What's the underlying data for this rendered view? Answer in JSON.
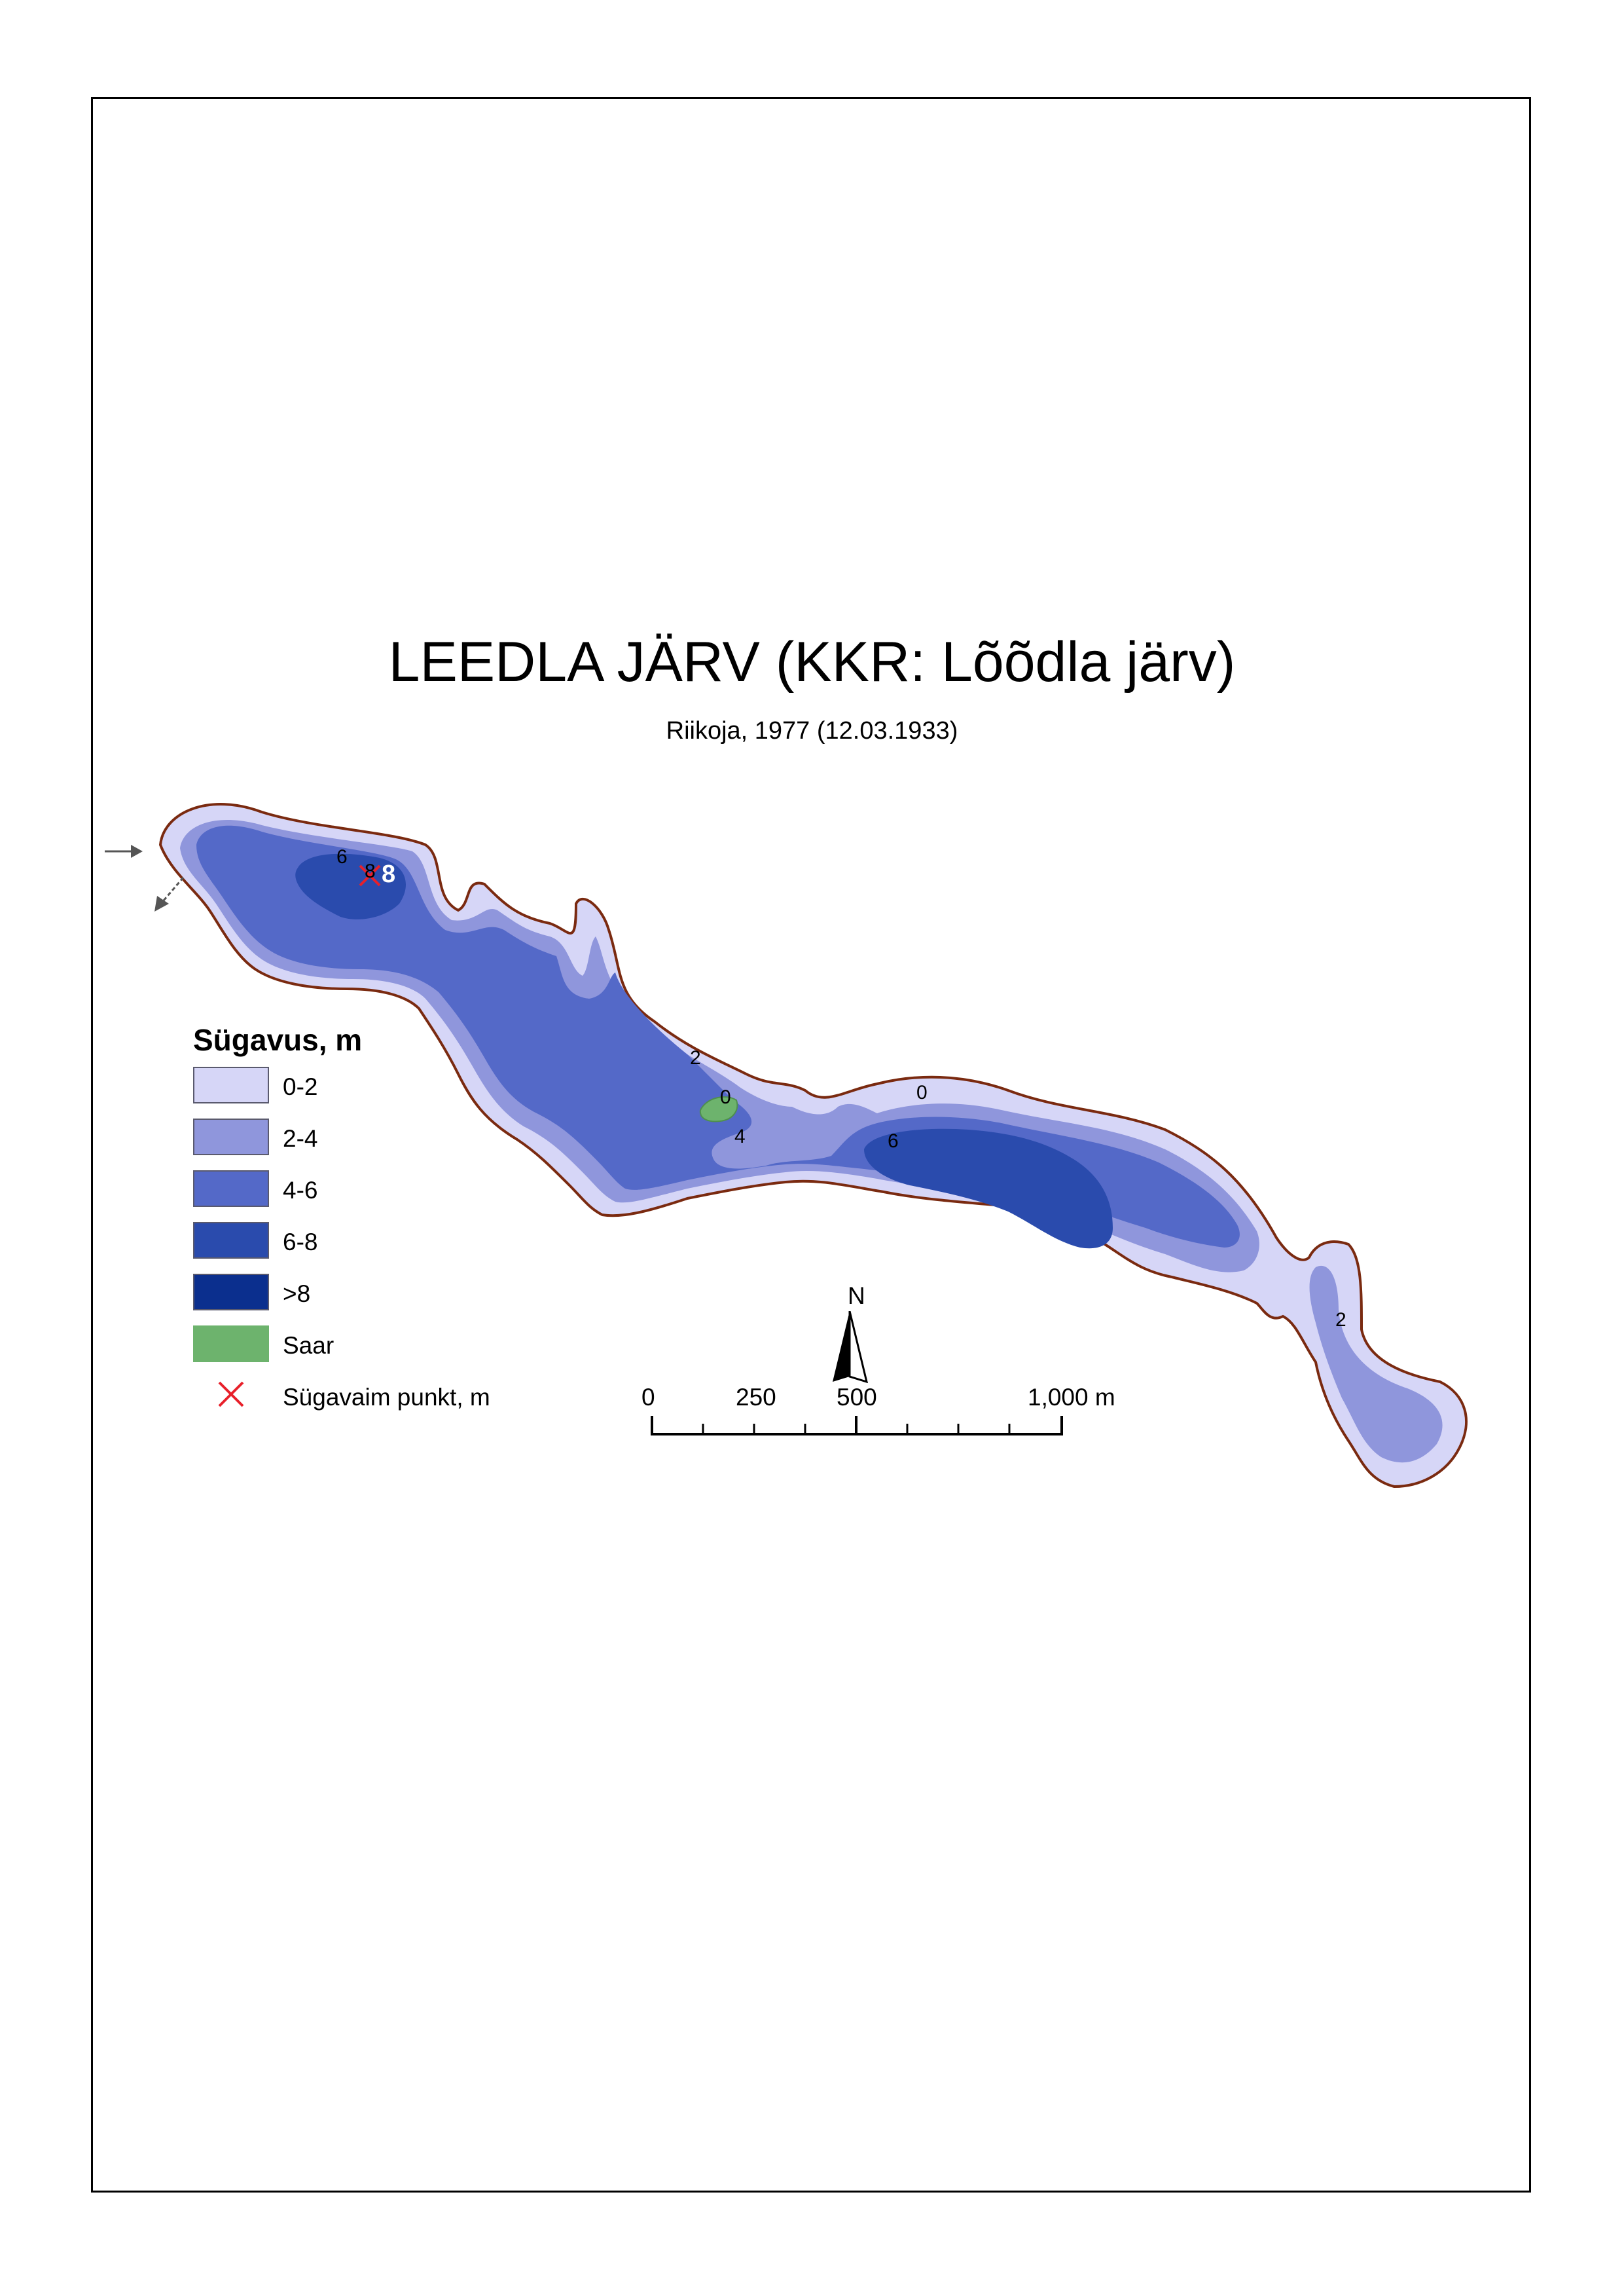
{
  "title": "LEEDLA JÄRV (KKR: Lõõdla järv)",
  "subtitle": "Riikoja, 1977 (12.03.1933)",
  "legend": {
    "title": "Sügavus, m",
    "items": [
      {
        "label": "0-2",
        "color": "#d6d6f7"
      },
      {
        "label": "2-4",
        "color": "#8f96dc"
      },
      {
        "label": "4-6",
        "color": "#5469c8"
      },
      {
        "label": "6-8",
        "color": "#2a4bad"
      },
      {
        "label": ">8",
        "color": "#0b2f8e"
      },
      {
        "label": "Saar",
        "color": "#6db36d"
      },
      {
        "label": "Sügavaim punkt, m",
        "color": "#e8202a",
        "icon": "red-x-icon"
      }
    ]
  },
  "map": {
    "shore_color": "#7a2a10",
    "island_color": "#6db36d",
    "depth_labels": [
      "6",
      "8",
      "8",
      "2",
      "0",
      "4",
      "0",
      "6",
      "2"
    ],
    "deepest_point_value": "8"
  },
  "scale_bar": {
    "labels": [
      "0",
      "250",
      "500",
      "1,000 m"
    ],
    "north_label": "N"
  }
}
